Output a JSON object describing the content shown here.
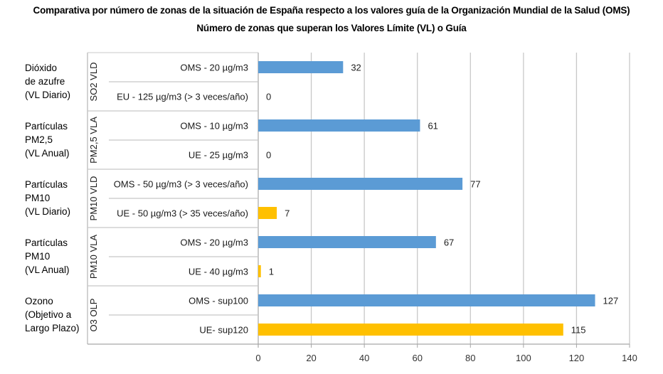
{
  "chart_data": {
    "type": "bar",
    "orientation": "horizontal",
    "title": "Comparativa por número de zonas de la situación de España respecto a los valores guía de la Organización Mundial de la Salud (OMS)",
    "subtitle": "Número de zonas que superan los Valores Límite (VL) o Guía",
    "xlabel": "",
    "ylabel": "",
    "xlim": [
      0,
      140
    ],
    "xticks": [
      0,
      20,
      40,
      60,
      80,
      100,
      120,
      140
    ],
    "grid": true,
    "legend": "none",
    "colors": {
      "OMS": "#5B9BD5",
      "UE": "#FFC000"
    },
    "groups": [
      {
        "description": [
          "Dióxido",
          "de azufre",
          "(VL Diario)"
        ],
        "code": "SO2 VLD",
        "bars": [
          {
            "label": "OMS - 20 µg/m3",
            "value": 32,
            "series": "OMS"
          },
          {
            "label": "EU - 125 µg/m3 (> 3 veces/año)",
            "value": 0,
            "series": "UE"
          }
        ]
      },
      {
        "description": [
          "Partículas",
          "PM2,5",
          "(VL Anual)"
        ],
        "code": "PM2,5 VLA",
        "bars": [
          {
            "label": "OMS - 10 µg/m3",
            "value": 61,
            "series": "OMS"
          },
          {
            "label": "UE - 25 µg/m3",
            "value": 0,
            "series": "UE"
          }
        ]
      },
      {
        "description": [
          "Partículas",
          "PM10",
          "(VL Diario)"
        ],
        "code": "PM10 VLD",
        "bars": [
          {
            "label": "OMS - 50 µg/m3 (> 3 veces/año)",
            "value": 77,
            "series": "OMS"
          },
          {
            "label": "UE - 50 µg/m3 (> 35 veces/año)",
            "value": 7,
            "series": "UE"
          }
        ]
      },
      {
        "description": [
          "Partículas",
          "PM10",
          "(VL Anual)"
        ],
        "code": "PM10 VLA",
        "bars": [
          {
            "label": "OMS - 20 µg/m3",
            "value": 67,
            "series": "OMS"
          },
          {
            "label": "UE - 40 µg/m3",
            "value": 1,
            "series": "UE"
          }
        ]
      },
      {
        "description": [
          "Ozono",
          "(Objetivo a",
          "Largo Plazo)"
        ],
        "code": "O3 OLP",
        "bars": [
          {
            "label": "OMS - sup100",
            "value": 127,
            "series": "OMS"
          },
          {
            "label": "UE- sup120",
            "value": 115,
            "series": "UE"
          }
        ]
      }
    ]
  }
}
